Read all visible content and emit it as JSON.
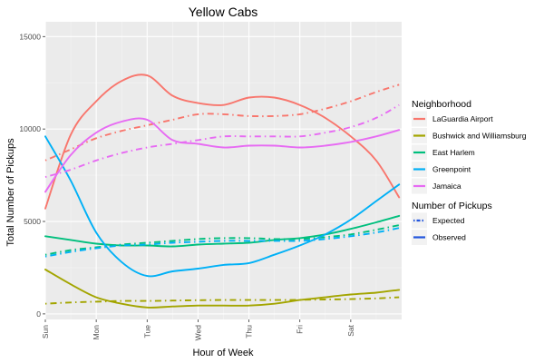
{
  "chart_data": {
    "type": "line",
    "title": "Yellow Cabs",
    "xlabel": "Hour of Week",
    "ylabel": "Total Number of Pickups",
    "x_ticks": [
      "Sun",
      "Mon",
      "Tue",
      "Wed",
      "Thu",
      "Fri",
      "Sat"
    ],
    "xlim": [
      0,
      7
    ],
    "ylim": [
      -300,
      15800
    ],
    "y_ticks": [
      0,
      5000,
      10000,
      15000
    ],
    "grid": true,
    "legend_placement": "right",
    "x": [
      0,
      0.5,
      1,
      1.5,
      2,
      2.5,
      3,
      3.5,
      4,
      4.5,
      5,
      5.5,
      6,
      6.5,
      6.95
    ],
    "legend": {
      "color_title": "Neighborhood",
      "linetype_title": "Number of Pickups",
      "linetype_items": [
        {
          "label": "Expected",
          "dash": "dotdash"
        },
        {
          "label": "Observed",
          "dash": "solid"
        }
      ]
    },
    "series": [
      {
        "name": "LaGuardia Airport",
        "color": "#F8766D",
        "observed": [
          5700,
          9700,
          11500,
          12600,
          12900,
          11800,
          11400,
          11300,
          11700,
          11700,
          11300,
          10600,
          9600,
          8300,
          6300
        ],
        "expected": [
          8300,
          8900,
          9500,
          9900,
          10200,
          10500,
          10800,
          10800,
          10700,
          10700,
          10800,
          11100,
          11500,
          12000,
          12400
        ]
      },
      {
        "name": "Bushwick and Williamsburg",
        "color": "#A3A500",
        "observed": [
          2400,
          1600,
          900,
          550,
          350,
          400,
          450,
          450,
          450,
          550,
          750,
          900,
          1050,
          1150,
          1300
        ],
        "expected": [
          550,
          620,
          660,
          700,
          700,
          720,
          740,
          750,
          750,
          750,
          760,
          780,
          800,
          840,
          900
        ]
      },
      {
        "name": "East Harlem",
        "color": "#00BF7D",
        "observed": [
          4200,
          4000,
          3800,
          3700,
          3700,
          3650,
          3750,
          3800,
          3850,
          4000,
          4100,
          4300,
          4600,
          4950,
          5300
        ],
        "expected": [
          3200,
          3450,
          3600,
          3750,
          3850,
          3950,
          4050,
          4100,
          4100,
          4050,
          4050,
          4150,
          4300,
          4550,
          4800
        ]
      },
      {
        "name": "Greenpoint",
        "color": "#00B0F6",
        "observed": [
          9600,
          7200,
          4400,
          2800,
          2050,
          2300,
          2450,
          2650,
          2750,
          3200,
          3700,
          4300,
          5100,
          6100,
          7000
        ],
        "expected": [
          3100,
          3350,
          3550,
          3700,
          3750,
          3850,
          3900,
          3950,
          3950,
          3950,
          3950,
          4050,
          4200,
          4400,
          4650
        ]
      },
      {
        "name": "Jamaica",
        "color": "#E76BF3",
        "observed": [
          6600,
          8600,
          9800,
          10400,
          10500,
          9400,
          9200,
          9000,
          9100,
          9100,
          9000,
          9100,
          9300,
          9600,
          9950
        ],
        "expected": [
          7400,
          7800,
          8300,
          8700,
          9000,
          9200,
          9400,
          9600,
          9600,
          9600,
          9600,
          9800,
          10100,
          10600,
          11300
        ]
      }
    ]
  }
}
